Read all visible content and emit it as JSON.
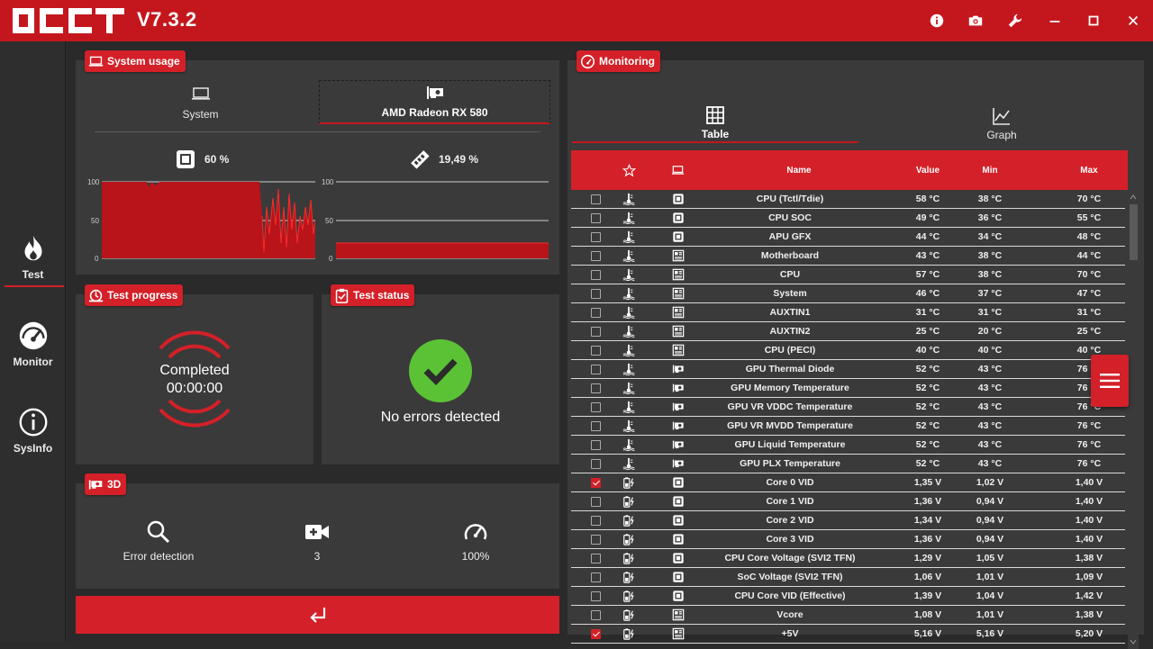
{
  "app": {
    "version": "V7.3.2",
    "logo_text": "OCCT"
  },
  "titlebar_icons": [
    "info-icon",
    "camera-icon",
    "wrench-icon",
    "minimize-icon",
    "maximize-icon",
    "close-icon"
  ],
  "nav": [
    {
      "label": "Test",
      "icon": "flame-icon",
      "active": true
    },
    {
      "label": "Monitor",
      "icon": "gauge-icon",
      "active": false
    },
    {
      "label": "SysInfo",
      "icon": "info-circle-icon",
      "active": false
    }
  ],
  "system_usage": {
    "title": "System usage",
    "tabs": [
      {
        "label": "System",
        "selected": false
      },
      {
        "label": "AMD Radeon RX 580",
        "selected": true
      }
    ],
    "cpu": {
      "value": "60 %"
    },
    "mem": {
      "value": "19,49 %"
    },
    "axis_ticks": [
      "100",
      "50",
      "0"
    ]
  },
  "test_progress": {
    "title": "Test progress",
    "status": "Completed",
    "time": "00:00:00"
  },
  "test_status": {
    "title": "Test status",
    "message": "No errors detected"
  },
  "test3d": {
    "title": "3D",
    "items": [
      {
        "label": "Error detection",
        "icon": "magnifier-icon"
      },
      {
        "label": "3",
        "icon": "video-plus-icon"
      },
      {
        "label": "100%",
        "icon": "speedometer-icon"
      }
    ]
  },
  "monitoring": {
    "title": "Monitoring",
    "tabs": [
      {
        "label": "Table",
        "selected": true
      },
      {
        "label": "Graph",
        "selected": false
      }
    ],
    "columns": [
      "Name",
      "Value",
      "Min",
      "Max"
    ],
    "rows": [
      {
        "checked": false,
        "kind": "temp",
        "src": "cpu",
        "name": "CPU (Tctl/Tdie)",
        "value": "58 °C",
        "min": "38 °C",
        "max": "70 °C"
      },
      {
        "checked": false,
        "kind": "temp",
        "src": "cpu",
        "name": "CPU SOC",
        "value": "49 °C",
        "min": "36 °C",
        "max": "55 °C"
      },
      {
        "checked": false,
        "kind": "temp",
        "src": "cpu",
        "name": "APU GFX",
        "value": "44 °C",
        "min": "34 °C",
        "max": "48 °C"
      },
      {
        "checked": false,
        "kind": "temp",
        "src": "board",
        "name": "Motherboard",
        "value": "43 °C",
        "min": "38 °C",
        "max": "44 °C"
      },
      {
        "checked": false,
        "kind": "temp",
        "src": "board",
        "name": "CPU",
        "value": "57 °C",
        "min": "38 °C",
        "max": "70 °C"
      },
      {
        "checked": false,
        "kind": "temp",
        "src": "board",
        "name": "System",
        "value": "46 °C",
        "min": "37 °C",
        "max": "47 °C"
      },
      {
        "checked": false,
        "kind": "temp",
        "src": "board",
        "name": "AUXTIN1",
        "value": "31 °C",
        "min": "31 °C",
        "max": "31 °C"
      },
      {
        "checked": false,
        "kind": "temp",
        "src": "board",
        "name": "AUXTIN2",
        "value": "25 °C",
        "min": "20 °C",
        "max": "25 °C"
      },
      {
        "checked": false,
        "kind": "temp",
        "src": "board",
        "name": "CPU (PECI)",
        "value": "40 °C",
        "min": "40 °C",
        "max": "40 °C"
      },
      {
        "checked": false,
        "kind": "temp",
        "src": "gpu",
        "name": "GPU Thermal Diode",
        "value": "52 °C",
        "min": "43 °C",
        "max": "76 °C"
      },
      {
        "checked": false,
        "kind": "temp",
        "src": "gpu",
        "name": "GPU Memory Temperature",
        "value": "52 °C",
        "min": "43 °C",
        "max": "76 °C"
      },
      {
        "checked": false,
        "kind": "temp",
        "src": "gpu",
        "name": "GPU VR VDDC Temperature",
        "value": "52 °C",
        "min": "43 °C",
        "max": "76 °C"
      },
      {
        "checked": false,
        "kind": "temp",
        "src": "gpu",
        "name": "GPU VR MVDD Temperature",
        "value": "52 °C",
        "min": "43 °C",
        "max": "76 °C"
      },
      {
        "checked": false,
        "kind": "temp",
        "src": "gpu",
        "name": "GPU Liquid Temperature",
        "value": "52 °C",
        "min": "43 °C",
        "max": "76 °C"
      },
      {
        "checked": false,
        "kind": "temp",
        "src": "gpu",
        "name": "GPU PLX Temperature",
        "value": "52 °C",
        "min": "43 °C",
        "max": "76 °C"
      },
      {
        "checked": true,
        "kind": "volt",
        "src": "cpu",
        "name": "Core 0 VID",
        "value": "1,35 V",
        "min": "1,02 V",
        "max": "1,40 V"
      },
      {
        "checked": false,
        "kind": "volt",
        "src": "cpu",
        "name": "Core 1 VID",
        "value": "1,36 V",
        "min": "0,94 V",
        "max": "1,40 V"
      },
      {
        "checked": false,
        "kind": "volt",
        "src": "cpu",
        "name": "Core 2 VID",
        "value": "1,34 V",
        "min": "0,94 V",
        "max": "1,40 V"
      },
      {
        "checked": false,
        "kind": "volt",
        "src": "cpu",
        "name": "Core 3 VID",
        "value": "1,36 V",
        "min": "0,94 V",
        "max": "1,40 V"
      },
      {
        "checked": false,
        "kind": "volt",
        "src": "cpu",
        "name": "CPU Core Voltage (SVI2 TFN)",
        "value": "1,29 V",
        "min": "1,05 V",
        "max": "1,38 V"
      },
      {
        "checked": false,
        "kind": "volt",
        "src": "cpu",
        "name": "SoC Voltage (SVI2 TFN)",
        "value": "1,06 V",
        "min": "1,01 V",
        "max": "1,09 V"
      },
      {
        "checked": false,
        "kind": "volt",
        "src": "cpu",
        "name": "CPU Core VID (Effective)",
        "value": "1,39 V",
        "min": "1,04 V",
        "max": "1,42 V"
      },
      {
        "checked": false,
        "kind": "volt",
        "src": "board",
        "name": "Vcore",
        "value": "1,08 V",
        "min": "1,01 V",
        "max": "1,38 V"
      },
      {
        "checked": true,
        "kind": "volt",
        "src": "board",
        "name": "+5V",
        "value": "5,16 V",
        "min": "5,16 V",
        "max": "5,20 V"
      }
    ]
  },
  "colors": {
    "accent": "#d42028",
    "titlebar": "#c4171d",
    "panel": "#3a3a3a",
    "ok_green": "#5bc236"
  }
}
